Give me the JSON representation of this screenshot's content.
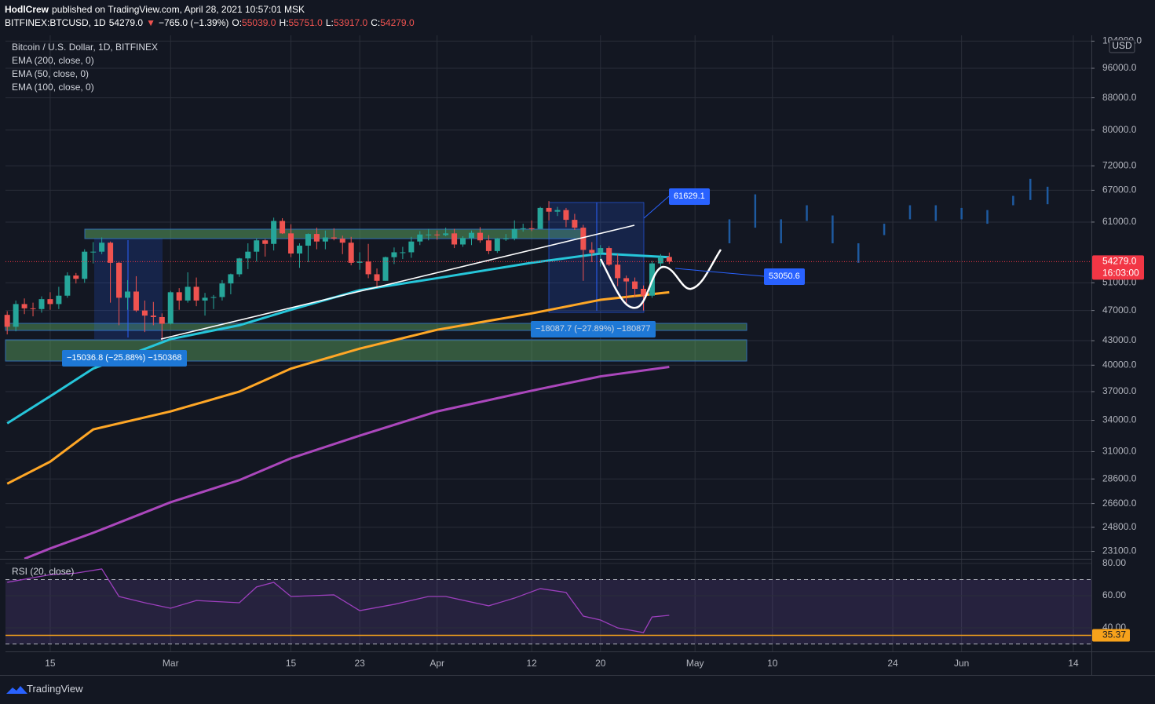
{
  "header": {
    "line1": [
      {
        "text": "HodlCrew",
        "color": "#ffffff"
      },
      {
        "text": "published on TradingView.com, April 28, 2021 10:57:01 MSK",
        "color": "#ffffff"
      }
    ],
    "line2": [
      {
        "text": "BITFINEX:BTCUSD, 1D",
        "color": "#ffffff"
      },
      {
        "text": "54279.0",
        "color": "#ffffff"
      },
      {
        "text": "▼",
        "color": "#ef5350"
      },
      {
        "text": "−765.0 (−1.39%)",
        "color": "#ffffff"
      },
      {
        "text": "O:",
        "color": "#ffffff"
      },
      {
        "text": "55039.0",
        "color": "#ef5350"
      },
      {
        "text": "H:",
        "color": "#ffffff"
      },
      {
        "text": "55751.0",
        "color": "#ef5350"
      },
      {
        "text": "L:",
        "color": "#ffffff"
      },
      {
        "text": "53917.0",
        "color": "#ef5350"
      },
      {
        "text": "C:",
        "color": "#ffffff"
      },
      {
        "text": "54279.0",
        "color": "#ef5350"
      }
    ]
  },
  "footer": "TradingView",
  "annotations": [
    "61629.1",
    "53050.6",
    "−15036.8 (−25.88%) −150368",
    "−18087.7 (−27.89%) −180877"
  ],
  "chart_data": {
    "type": "candlestick",
    "title": "Bitcoin / U.S. Dollar, 1D, BITFINEX",
    "currency": "USD",
    "price_label": {
      "label": "54279.0",
      "countdown": "16:03:00",
      "color": "#f23645"
    },
    "up_color": "#26a69a",
    "down_color": "#ef5350",
    "log_scale": true,
    "grid": true,
    "x": [
      41,
      42,
      43,
      44,
      45,
      46,
      47,
      48,
      49,
      50,
      51,
      52,
      53,
      54,
      55,
      56,
      57,
      58,
      59,
      60,
      61,
      62,
      63,
      64,
      65,
      66,
      67,
      68,
      69,
      70,
      71,
      72,
      73,
      74,
      75,
      76,
      77,
      78,
      79,
      80,
      81,
      82,
      83,
      84,
      85,
      86,
      87,
      88,
      89,
      90,
      91,
      92,
      93,
      94,
      95,
      96,
      97,
      98,
      99,
      100,
      101,
      102,
      103,
      104,
      105,
      106,
      107,
      108,
      109,
      110,
      111,
      112,
      113,
      114,
      115,
      116,
      117,
      118
    ],
    "open": [
      46400,
      44800,
      47900,
      47300,
      47200,
      48600,
      47900,
      49100,
      52100,
      51600,
      55900,
      55900,
      57400,
      54100,
      48800,
      49700,
      47000,
      46300,
      46100,
      45200,
      49600,
      48400,
      50400,
      48400,
      48800,
      48900,
      50900,
      52300,
      54800,
      55900,
      57800,
      57200,
      61200,
      59000,
      55600,
      56900,
      58900,
      57600,
      58300,
      58100,
      57400,
      54100,
      54300,
      52300,
      51300,
      55000,
      55800,
      55800,
      57600,
      58800,
      58800,
      58700,
      59000,
      57100,
      58200,
      59100,
      57800,
      56000,
      58100,
      58100,
      59800,
      59900,
      59800,
      63600,
      62900,
      63200,
      61400,
      60000,
      56200,
      55700,
      56500,
      53800,
      51700,
      51200,
      50100,
      49100,
      54000,
      55039
    ],
    "high": [
      46900,
      48400,
      48700,
      48100,
      49000,
      49600,
      50400,
      52600,
      52500,
      56300,
      57500,
      58300,
      57600,
      54200,
      51400,
      52000,
      48400,
      48200,
      46600,
      49800,
      50200,
      52600,
      51800,
      49500,
      49200,
      51400,
      52400,
      54900,
      57300,
      58100,
      58000,
      61800,
      61700,
      60600,
      57300,
      59000,
      60000,
      59500,
      59900,
      58600,
      58400,
      55800,
      57200,
      53200,
      55100,
      56600,
      56700,
      58400,
      59400,
      59800,
      59500,
      60000,
      59800,
      58500,
      59500,
      60100,
      58700,
      58200,
      58900,
      61300,
      60700,
      61300,
      63800,
      64900,
      63800,
      63600,
      62500,
      60500,
      57500,
      57000,
      56800,
      55500,
      52100,
      51800,
      50600,
      54400,
      55500,
      55751
    ],
    "low": [
      43800,
      44200,
      46500,
      46200,
      46700,
      47100,
      47200,
      48800,
      50900,
      51000,
      54000,
      55500,
      48100,
      45000,
      47100,
      46800,
      44100,
      45000,
      43000,
      45100,
      47100,
      48100,
      47600,
      46300,
      47200,
      48400,
      49300,
      51900,
      53100,
      54300,
      55100,
      56100,
      58900,
      55000,
      53300,
      54200,
      56300,
      56300,
      57800,
      55500,
      53700,
      53000,
      51700,
      50300,
      51300,
      53900,
      54700,
      54900,
      57000,
      57800,
      57900,
      58500,
      56500,
      56700,
      57000,
      57400,
      55500,
      55700,
      57700,
      57800,
      59300,
      59400,
      59800,
      61300,
      62100,
      60100,
      59600,
      51300,
      54200,
      53500,
      53600,
      50500,
      47700,
      48900,
      47000,
      48800,
      53300,
      53917
    ],
    "close": [
      44800,
      47900,
      47300,
      47200,
      48600,
      47900,
      49100,
      52100,
      51600,
      55900,
      55900,
      57400,
      54100,
      48800,
      49700,
      47000,
      46300,
      46100,
      45200,
      49600,
      48400,
      50400,
      48400,
      48800,
      48900,
      50900,
      52300,
      54800,
      55900,
      57800,
      57200,
      61200,
      59000,
      55600,
      56900,
      58900,
      57600,
      58300,
      58100,
      57400,
      54100,
      54300,
      52300,
      51300,
      55000,
      55800,
      55800,
      57600,
      58800,
      58800,
      58700,
      59000,
      57100,
      58200,
      59100,
      57800,
      56000,
      58100,
      58100,
      59800,
      59900,
      59800,
      63600,
      62900,
      63200,
      61400,
      60000,
      56200,
      55700,
      56500,
      53800,
      51700,
      51200,
      50100,
      49100,
      54000,
      55000,
      54279
    ],
    "xlim": [
      40.8,
      167.1
    ],
    "xticks": [
      {
        "value": 46,
        "label": "15"
      },
      {
        "value": 60,
        "label": "Mar"
      },
      {
        "value": 74,
        "label": "15"
      },
      {
        "value": 82,
        "label": "23"
      },
      {
        "value": 91,
        "label": "Apr"
      },
      {
        "value": 102,
        "label": "12"
      },
      {
        "value": 110,
        "label": "20"
      },
      {
        "value": 121,
        "label": "May"
      },
      {
        "value": 130,
        "label": "10"
      },
      {
        "value": 144,
        "label": "24"
      },
      {
        "value": 152,
        "label": "Jun"
      },
      {
        "value": 165,
        "label": "14"
      }
    ],
    "ylim": [
      22600,
      105800
    ],
    "yticks": [
      {
        "value": 104000,
        "label": "104000.0"
      },
      {
        "value": 96000,
        "label": "96000.0"
      },
      {
        "value": 88000,
        "label": "88000.0"
      },
      {
        "value": 80000,
        "label": "80000.0"
      },
      {
        "value": 72000,
        "label": "72000.0"
      },
      {
        "value": 67000,
        "label": "67000.0"
      },
      {
        "value": 61000,
        "label": "61000.0"
      },
      {
        "value": 51000,
        "label": "51000.0"
      },
      {
        "value": 47000,
        "label": "47000.0"
      },
      {
        "value": 43000,
        "label": "43000.0"
      },
      {
        "value": 40000,
        "label": "40000.0"
      },
      {
        "value": 37000,
        "label": "37000.0"
      },
      {
        "value": 34000,
        "label": "34000.0"
      },
      {
        "value": 31000,
        "label": "31000.0"
      },
      {
        "value": 28600,
        "label": "28600.0"
      },
      {
        "value": 26600,
        "label": "26600.0"
      },
      {
        "value": 24800,
        "label": "24800.0"
      },
      {
        "value": 23100,
        "label": "23100.0"
      }
    ],
    "indicators": [
      {
        "name": "EMA (200, close, 0)",
        "color": "#ab47bc",
        "x": [
          43,
          46,
          51,
          60,
          68,
          74,
          82,
          91,
          102,
          110,
          118
        ],
        "values": [
          22600,
          23300,
          24400,
          26700,
          28500,
          30400,
          32500,
          34900,
          37100,
          38700,
          39800
        ]
      },
      {
        "name": "EMA (50, close, 0)",
        "color": "#26c6da",
        "x": [
          41,
          46,
          51,
          60,
          68,
          74,
          82,
          91,
          102,
          110,
          118
        ],
        "values": [
          33700,
          36500,
          39600,
          43200,
          45000,
          47100,
          49900,
          51700,
          54100,
          55600,
          55000
        ]
      },
      {
        "name": "EMA (100, close, 0)",
        "color": "#ffa726",
        "x": [
          41,
          46,
          51,
          60,
          68,
          74,
          82,
          91,
          102,
          110,
          118
        ],
        "values": [
          28200,
          30100,
          33100,
          34900,
          37000,
          39600,
          42000,
          44400,
          46600,
          48500,
          49600
        ]
      }
    ],
    "projection": {
      "color": "#1e5aa0",
      "x": [
        125,
        128,
        131,
        134,
        137,
        140,
        143,
        146,
        149,
        152,
        155,
        158,
        160,
        162
      ],
      "high": [
        61500,
        66200,
        61500,
        64100,
        62200,
        57300,
        60700,
        64100,
        64100,
        63600,
        63200,
        65900,
        69300,
        67700
      ],
      "low": [
        57300,
        60000,
        57300,
        61200,
        57300,
        54100,
        58700,
        61500,
        61200,
        61500,
        60700,
        64100,
        65100,
        64300
      ]
    },
    "rsi": {
      "name": "RSI (20, close)",
      "color": "#9c3fbd",
      "ylim": [
        25.4,
        82.4
      ],
      "yticks": [
        {
          "value": 80,
          "label": "80.00"
        },
        {
          "value": 60,
          "label": "60.00"
        },
        {
          "value": 40,
          "label": "40.00"
        }
      ],
      "band": [
        30,
        70
      ],
      "level": {
        "value": 35.37,
        "label": "35.37",
        "color": "#f7a21b"
      },
      "x": [
        41,
        46,
        49,
        52,
        54,
        57,
        60,
        63,
        68,
        70,
        72,
        74,
        79,
        82,
        86,
        90,
        92,
        97,
        100,
        103,
        106,
        108,
        110,
        112,
        115,
        116,
        118
      ],
      "values": [
        68.3,
        73,
        74,
        76.6,
        59.5,
        55.6,
        52.2,
        57,
        55.6,
        65.4,
        68.3,
        59.5,
        60.5,
        50.7,
        54.6,
        59.5,
        59.5,
        53.7,
        58.5,
        64.4,
        62,
        47.3,
        44.9,
        40,
        37.1,
        46.8,
        47.8
      ]
    }
  }
}
